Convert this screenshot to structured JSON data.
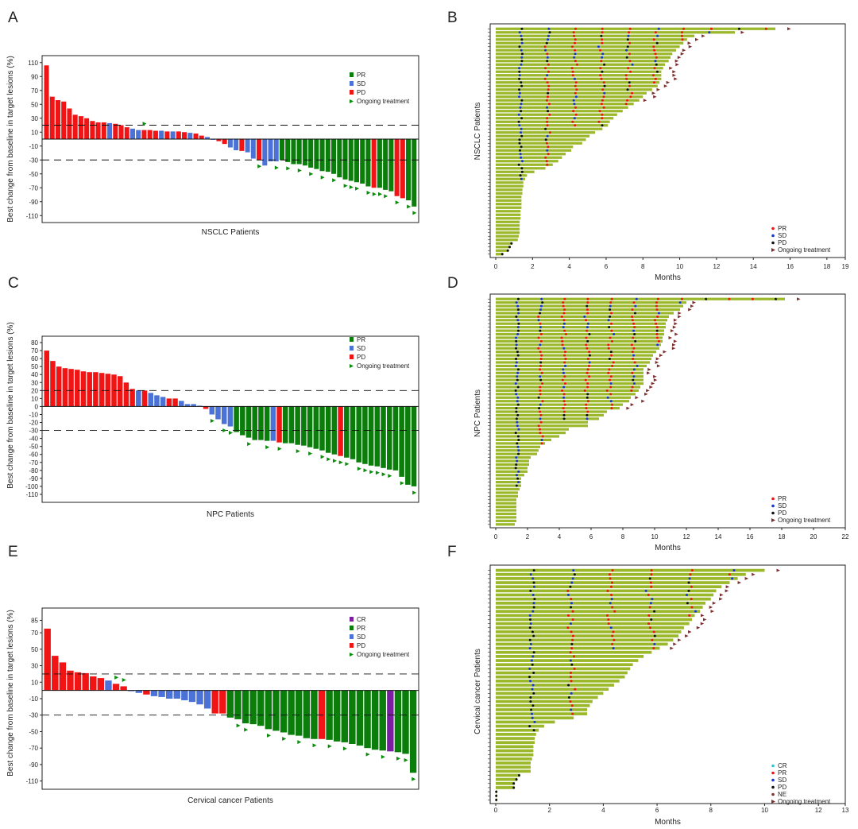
{
  "colors": {
    "PR": "#0a7d0a",
    "SD": "#4b72d6",
    "PD": "#f01414",
    "CR": "#7b1fa2",
    "NE": "#7e2e2e",
    "swimbar": "#9ab82a",
    "swimPR": "#f01414",
    "swimSD": "#1536d4",
    "swimPD": "#111111",
    "swimOngoing": "#7e2e2e",
    "swimCR": "#26c6da",
    "marker": "#0a8c0a"
  },
  "panel_labels": [
    "A",
    "B",
    "C",
    "D",
    "E",
    "F"
  ],
  "chart_data": [
    {
      "id": "A",
      "type": "bar",
      "ylabel": "Best change from baseline in target lesions (%)",
      "xlabel": "NSCLC Patients",
      "ylim": [
        -120,
        120
      ],
      "yticks": [
        110,
        90,
        70,
        50,
        30,
        10,
        -10,
        -30,
        -50,
        -70,
        -90,
        -110
      ],
      "refLines": [
        20,
        -30
      ],
      "legend": [
        {
          "code": "PR",
          "label": "PR"
        },
        {
          "code": "SD",
          "label": "SD"
        },
        {
          "code": "PD",
          "label": "PD"
        },
        {
          "code": "ONG",
          "label": "Ongoing treatment"
        }
      ],
      "values": [
        106,
        61,
        56,
        54,
        44,
        35,
        33,
        30,
        26,
        24,
        24,
        23,
        22,
        20,
        17,
        15,
        13,
        13,
        13,
        12,
        12,
        11,
        11,
        11,
        10,
        9,
        8,
        5,
        3,
        -1,
        -3,
        -7,
        -12,
        -16,
        -17,
        -19,
        -28,
        -30,
        -38,
        -32,
        -32,
        -30,
        -33,
        -36,
        -36,
        -38,
        -41,
        -43,
        -46,
        -47,
        -50,
        -55,
        -58,
        -60,
        -62,
        -64,
        -68,
        -70,
        -70,
        -73,
        -75,
        -82,
        -85,
        -88,
        -97
      ],
      "status": [
        "PD",
        "PD",
        "PD",
        "PD",
        "PD",
        "PD",
        "PD",
        "PD",
        "PD",
        "PD",
        "PD",
        "SD",
        "PD",
        "PD",
        "PD",
        "SD",
        "SD",
        "PD",
        "PD",
        "PD",
        "SD",
        "PD",
        "SD",
        "PD",
        "PD",
        "SD",
        "PD",
        "PD",
        "SD",
        "SD",
        "PD",
        "PD",
        "SD",
        "SD",
        "PD",
        "SD",
        "SD",
        "PD",
        "SD",
        "SD",
        "SD",
        "PR",
        "PR",
        "PR",
        "PR",
        "PR",
        "PR",
        "PR",
        "PR",
        "PR",
        "PR",
        "PR",
        "PR",
        "PR",
        "PR",
        "PR",
        "PR",
        "PD",
        "PR",
        "PR",
        "PR",
        "PD",
        "PD",
        "PR",
        "PR"
      ],
      "ongoing": [
        17,
        37,
        40,
        42,
        44,
        46,
        48,
        50,
        52,
        53,
        54,
        56,
        57,
        58,
        59,
        61,
        63,
        64,
        65,
        67
      ]
    },
    {
      "id": "C",
      "type": "bar",
      "ylabel": "Best change from baseline in target lesions (%)",
      "xlabel": "NPC Patients",
      "ylim": [
        -120,
        88
      ],
      "yticks": [
        80,
        70,
        60,
        50,
        40,
        30,
        20,
        10,
        0,
        -10,
        -20,
        -30,
        -40,
        -50,
        -60,
        -70,
        -80,
        -90,
        -100,
        -110
      ],
      "refLines": [
        20,
        -30
      ],
      "legend": [
        {
          "code": "PR",
          "label": "PR"
        },
        {
          "code": "SD",
          "label": "SD"
        },
        {
          "code": "PD",
          "label": "PD"
        },
        {
          "code": "ONG",
          "label": "Ongoing treatment"
        }
      ],
      "values": [
        70,
        57,
        50,
        48,
        47,
        46,
        44,
        43,
        43,
        42,
        41,
        40,
        38,
        30,
        22,
        20,
        20,
        17,
        14,
        12,
        10,
        10,
        7,
        3,
        3,
        1,
        -3,
        -10,
        -16,
        -22,
        -25,
        -32,
        -36,
        -39,
        -42,
        -42,
        -43,
        -43,
        -45,
        -46,
        -46,
        -48,
        -49,
        -51,
        -53,
        -55,
        -58,
        -60,
        -62,
        -64,
        -66,
        -70,
        -72,
        -74,
        -75,
        -77,
        -79,
        -80,
        -88,
        -98,
        -100
      ],
      "status": [
        "PD",
        "PD",
        "PD",
        "PD",
        "PD",
        "PD",
        "PD",
        "PD",
        "PD",
        "PD",
        "PD",
        "PD",
        "PD",
        "PD",
        "PD",
        "SD",
        "PD",
        "SD",
        "SD",
        "SD",
        "PD",
        "PD",
        "SD",
        "SD",
        "SD",
        "SD",
        "PD",
        "SD",
        "SD",
        "SD",
        "SD",
        "PR",
        "PR",
        "PR",
        "PR",
        "PR",
        "PR",
        "SD",
        "PD",
        "PR",
        "PR",
        "PR",
        "PR",
        "PR",
        "PR",
        "PR",
        "PR",
        "PR",
        "PD",
        "PR",
        "PR",
        "PR",
        "PR",
        "PR",
        "PR",
        "PR",
        "PR",
        "PR",
        "PR",
        "PR",
        "PR"
      ],
      "ongoing": [
        27,
        29,
        30,
        33,
        36,
        38,
        41,
        43,
        45,
        46,
        47,
        48,
        49,
        51,
        52,
        53,
        54,
        55,
        56,
        58,
        60
      ]
    },
    {
      "id": "E",
      "type": "bar",
      "ylabel": "Best change from baseline in target lesions (%)",
      "xlabel": "Cervical cancer Patients",
      "ylim": [
        -120,
        100
      ],
      "yticks": [
        85,
        70,
        50,
        30,
        10,
        -10,
        -30,
        -50,
        -70,
        -90,
        -110
      ],
      "refLines": [
        20,
        -30
      ],
      "legend": [
        {
          "code": "CR",
          "label": "CR"
        },
        {
          "code": "PR",
          "label": "PR"
        },
        {
          "code": "SD",
          "label": "SD"
        },
        {
          "code": "PD",
          "label": "PD"
        },
        {
          "code": "ONG",
          "label": "Ongoing treatment"
        }
      ],
      "values": [
        75,
        42,
        34,
        24,
        22,
        21,
        17,
        15,
        12,
        8,
        5,
        -1,
        -3,
        -5,
        -7,
        -8,
        -10,
        -10,
        -12,
        -14,
        -17,
        -22,
        -28,
        -28,
        -33,
        -35,
        -40,
        -41,
        -43,
        -47,
        -49,
        -51,
        -54,
        -55,
        -58,
        -59,
        -59,
        -60,
        -62,
        -63,
        -65,
        -67,
        -70,
        -72,
        -73,
        -74,
        -75,
        -77,
        -100
      ],
      "status": [
        "PD",
        "PD",
        "PD",
        "PD",
        "PD",
        "PD",
        "PD",
        "PD",
        "SD",
        "PD",
        "PD",
        "SD",
        "SD",
        "PD",
        "SD",
        "SD",
        "SD",
        "SD",
        "SD",
        "SD",
        "SD",
        "SD",
        "PD",
        "PD",
        "PR",
        "PR",
        "PR",
        "PR",
        "PR",
        "PR",
        "PR",
        "PR",
        "PR",
        "PR",
        "PR",
        "PR",
        "PD",
        "PR",
        "PR",
        "PR",
        "PR",
        "PR",
        "PR",
        "PR",
        "PR",
        "CR",
        "PR",
        "PR",
        "PR"
      ],
      "ongoing": [
        9,
        10,
        25,
        26,
        29,
        31,
        33,
        35,
        37,
        39,
        42,
        44,
        46,
        47,
        48,
        49,
        50
      ]
    },
    {
      "id": "B",
      "type": "swimmer",
      "ylabel": "NSCLC Patients",
      "xlabel": "Months",
      "xlim": [
        0,
        19
      ],
      "xticks": [
        0,
        2,
        4,
        6,
        8,
        10,
        12,
        14,
        16,
        18,
        19
      ],
      "legend": [
        {
          "code": "PR",
          "label": "PR"
        },
        {
          "code": "SD",
          "label": "SD"
        },
        {
          "code": "PD",
          "label": "PD"
        },
        {
          "code": "ONG",
          "label": "Ongoing treatment"
        }
      ],
      "durations": [
        15.2,
        13,
        10.8,
        10.4,
        10.2,
        10,
        9.8,
        9.6,
        9.5,
        9.4,
        9.2,
        9.1,
        9,
        9,
        9,
        8.9,
        8.8,
        8.5,
        8.2,
        8,
        7.8,
        7.5,
        7.2,
        6.9,
        6.6,
        6.4,
        6.2,
        6.1,
        5.8,
        5.4,
        5.1,
        4.9,
        4.7,
        4.2,
        4.1,
        3.8,
        3.6,
        3.4,
        3.1,
        2.7,
        2.1,
        1.7,
        1.6,
        1.5,
        1.5,
        1.45,
        1.45,
        1.4,
        1.4,
        1.4,
        1.4,
        1.35,
        1.35,
        1.35,
        1.3,
        1.3,
        1.3,
        1.3,
        1.25,
        1.2,
        0.9,
        0.8,
        0.7,
        0.4
      ]
    },
    {
      "id": "D",
      "type": "swimmer",
      "ylabel": "NPC Patients",
      "xlabel": "Months",
      "xlim": [
        0,
        22
      ],
      "xticks": [
        0,
        2,
        4,
        6,
        8,
        10,
        12,
        14,
        16,
        18,
        20,
        22
      ],
      "legend": [
        {
          "code": "PR",
          "label": "PR"
        },
        {
          "code": "SD",
          "label": "SD"
        },
        {
          "code": "PD",
          "label": "PD"
        },
        {
          "code": "ONG",
          "label": "Ongoing treatment"
        }
      ],
      "durations": [
        18.2,
        12,
        11.8,
        11.6,
        11.2,
        10.9,
        10.8,
        10.7,
        10.7,
        10.6,
        10.6,
        10.5,
        10.5,
        10.4,
        10.3,
        10.1,
        9.9,
        9.8,
        9.7,
        9.5,
        9.3,
        9.3,
        9.3,
        9.3,
        9.3,
        9.1,
        9,
        8.8,
        8.5,
        8.4,
        8,
        7.8,
        7,
        6.8,
        6.5,
        5.8,
        5.8,
        4.6,
        4.4,
        4,
        3.5,
        3.1,
        2.8,
        2.7,
        2.6,
        2.2,
        2.1,
        2.1,
        2,
        2,
        1.8,
        1.6,
        1.6,
        1.6,
        1.5,
        1.4,
        1.4,
        1.3,
        1.3,
        1.3,
        1.3,
        1.3,
        1.3,
        1.3,
        1.2
      ]
    },
    {
      "id": "F",
      "type": "swimmer",
      "ylabel": "Cervical cancer Patients",
      "xlabel": "Months",
      "xlim": [
        0,
        13
      ],
      "xticks": [
        0,
        2,
        4,
        6,
        8,
        10,
        12,
        13
      ],
      "legend": [
        {
          "code": "CR",
          "label": "CR"
        },
        {
          "code": "PR",
          "label": "PR"
        },
        {
          "code": "SD",
          "label": "SD"
        },
        {
          "code": "PD",
          "label": "PD"
        },
        {
          "code": "NE",
          "label": "NE"
        },
        {
          "code": "ONG",
          "label": "Ongoing treatment"
        }
      ],
      "durations": [
        10,
        9.3,
        9,
        8.7,
        8.4,
        8.2,
        8.1,
        8,
        7.8,
        7.7,
        7.6,
        7.4,
        7.3,
        7.2,
        7,
        6.9,
        6.8,
        6.6,
        6.4,
        6.1,
        5.8,
        5.5,
        5.3,
        5.1,
        5,
        4.9,
        4.8,
        4.6,
        4.4,
        4.2,
        4,
        3.8,
        3.6,
        3.5,
        3.4,
        3.4,
        2.9,
        2.2,
        1.8,
        1.6,
        1.5,
        1.45,
        1.45,
        1.4,
        1.4,
        1.4,
        1.35,
        1.3,
        1.3,
        1.3,
        0.9,
        0.8,
        0.7,
        0.7,
        0.05,
        0.05,
        0.05
      ]
    }
  ]
}
